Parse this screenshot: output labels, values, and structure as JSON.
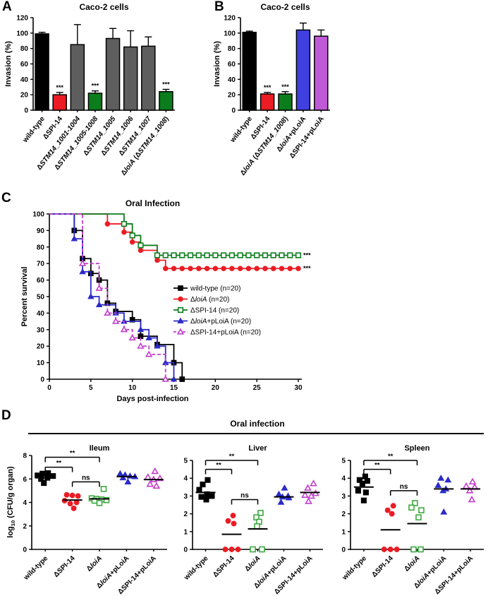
{
  "palette": {
    "black": "#000000",
    "red": "#EB1C24",
    "green": "#0B7D1C",
    "green_open": "#3BA93F",
    "blue": "#4040E0",
    "blue_deep": "#2B2BC8",
    "purple": "#BE5AD6",
    "magenta": "#C13FC9",
    "gray": "#5E5E5E"
  },
  "panel_labels": {
    "a": "A",
    "b": "B",
    "c": "C",
    "d": "D"
  },
  "chart_data": [
    {
      "panel": "A",
      "type": "bar",
      "title": "Caco-2 cells",
      "ylabel": "Invasion (%)",
      "ylim": [
        0,
        120
      ],
      "ystep": 20,
      "categories": [
        [
          [
            "wild-type",
            ""
          ]
        ],
        [
          [
            "ΔSPI-14",
            ""
          ]
        ],
        [
          [
            "Δ",
            ""
          ],
          [
            "STM14_1001-1004",
            "i"
          ]
        ],
        [
          [
            "Δ",
            ""
          ],
          [
            "STM14_1005-1008",
            "i"
          ]
        ],
        [
          [
            "Δ",
            ""
          ],
          [
            "STM14_1005",
            "i"
          ]
        ],
        [
          [
            "Δ",
            ""
          ],
          [
            "STM14_1006",
            "i"
          ]
        ],
        [
          [
            "Δ",
            ""
          ],
          [
            "STM14_1007",
            "i"
          ]
        ],
        [
          [
            "Δ",
            ""
          ],
          [
            "loiA",
            "i"
          ],
          [
            " (Δ",
            ""
          ],
          [
            "STM14_1008",
            "i"
          ],
          [
            ")",
            ""
          ]
        ]
      ],
      "values": [
        99,
        20,
        85,
        22,
        93,
        82,
        83,
        24
      ],
      "errors": [
        2,
        3,
        26,
        3,
        13,
        21,
        12,
        3
      ],
      "colors": [
        "black",
        "red",
        "gray",
        "green",
        "gray",
        "gray",
        "gray",
        "green"
      ],
      "sig": [
        "",
        "***",
        "",
        "***",
        "",
        "",
        "",
        "***"
      ]
    },
    {
      "panel": "B",
      "type": "bar",
      "title": "Caco-2 cells",
      "ylabel": "Invasion (%)",
      "ylim": [
        0,
        120
      ],
      "ystep": 20,
      "categories": [
        [
          [
            "wild-type",
            ""
          ]
        ],
        [
          [
            "ΔSPI-14",
            ""
          ]
        ],
        [
          [
            "Δ",
            ""
          ],
          [
            "loiA",
            "i"
          ],
          [
            " (Δ",
            ""
          ],
          [
            "STM14_1008",
            "i"
          ],
          [
            ")",
            ""
          ]
        ],
        [
          [
            "Δ",
            ""
          ],
          [
            "loiA",
            "i"
          ],
          [
            "+pLoiA",
            ""
          ]
        ],
        [
          [
            "ΔSPI-14+pLoiA",
            ""
          ]
        ]
      ],
      "values": [
        101,
        21,
        21,
        104,
        96
      ],
      "errors": [
        1.5,
        2,
        3,
        9,
        8
      ],
      "colors": [
        "black",
        "red",
        "green",
        "blue",
        "purple"
      ],
      "sig": [
        "",
        "***",
        "***",
        "",
        ""
      ]
    },
    {
      "panel": "C",
      "type": "line",
      "title": "Oral Infection",
      "xlabel": "Days post-infection",
      "ylabel": "Percent survival",
      "xlim": [
        0,
        30
      ],
      "xstep": 5,
      "ylim": [
        0,
        100
      ],
      "ystep": 10,
      "legend_position": "inside-right",
      "series": [
        {
          "name_parts": [
            [
              "wild-type (n=20)",
              ""
            ]
          ],
          "color": "black",
          "marker": "square",
          "open": false,
          "dashed": false,
          "sig": "",
          "points": [
            [
              0,
              100
            ],
            [
              3,
              90
            ],
            [
              4,
              73
            ],
            [
              5,
              64
            ],
            [
              6,
              60
            ],
            [
              7,
              46
            ],
            [
              8,
              41
            ],
            [
              10,
              36
            ],
            [
              11,
              26
            ],
            [
              13,
              21
            ],
            [
              15,
              10
            ],
            [
              16,
              0
            ]
          ]
        },
        {
          "name_parts": [
            [
              "Δ",
              ""
            ],
            [
              "loiA",
              "i"
            ],
            [
              " (n=20)",
              ""
            ]
          ],
          "color": "red",
          "marker": "circle",
          "open": false,
          "dashed": false,
          "sig": "***",
          "points": [
            [
              0,
              100
            ],
            [
              7,
              94
            ],
            [
              9,
              89
            ],
            [
              10,
              83
            ],
            [
              11,
              78
            ],
            [
              13,
              72
            ],
            [
              14,
              67
            ],
            [
              15,
              67
            ],
            [
              16,
              67
            ],
            [
              17,
              67
            ],
            [
              18,
              67
            ],
            [
              19,
              67
            ],
            [
              20,
              67
            ],
            [
              21,
              67
            ],
            [
              22,
              67
            ],
            [
              23,
              67
            ],
            [
              24,
              67
            ],
            [
              25,
              67
            ],
            [
              26,
              67
            ],
            [
              27,
              67
            ],
            [
              28,
              67
            ],
            [
              29,
              67
            ],
            [
              30,
              67
            ]
          ]
        },
        {
          "name_parts": [
            [
              "ΔSPI-14 (n=20)",
              ""
            ]
          ],
          "color": "green",
          "marker": "square",
          "open": true,
          "dashed": false,
          "sig": "***",
          "points": [
            [
              0,
              100
            ],
            [
              9,
              94
            ],
            [
              10,
              87
            ],
            [
              11,
              81
            ],
            [
              13,
              75
            ],
            [
              14,
              75
            ],
            [
              15,
              75
            ],
            [
              16,
              75
            ],
            [
              17,
              75
            ],
            [
              18,
              75
            ],
            [
              19,
              75
            ],
            [
              20,
              75
            ],
            [
              21,
              75
            ],
            [
              22,
              75
            ],
            [
              23,
              75
            ],
            [
              24,
              75
            ],
            [
              25,
              75
            ],
            [
              26,
              75
            ],
            [
              27,
              75
            ],
            [
              28,
              75
            ],
            [
              29,
              75
            ],
            [
              30,
              75
            ]
          ]
        },
        {
          "name_parts": [
            [
              "Δ",
              ""
            ],
            [
              "loiA",
              "i"
            ],
            [
              "+pLoiA (n=20)",
              ""
            ]
          ],
          "color": "blue_deep",
          "marker": "triangle",
          "open": false,
          "dashed": false,
          "sig": "",
          "points": [
            [
              0,
              100
            ],
            [
              3,
              85
            ],
            [
              4,
              65
            ],
            [
              5,
              50
            ],
            [
              6,
              45
            ],
            [
              8,
              40
            ],
            [
              9,
              35
            ],
            [
              11,
              30
            ],
            [
              12,
              25
            ],
            [
              13,
              20
            ],
            [
              14,
              10
            ],
            [
              15,
              0
            ]
          ]
        },
        {
          "name_parts": [
            [
              "ΔSPI-14+pLoiA (n=20)",
              ""
            ]
          ],
          "color": "magenta",
          "marker": "triangle",
          "open": true,
          "dashed": true,
          "sig": "",
          "points": [
            [
              0,
              100
            ],
            [
              4,
              70
            ],
            [
              6,
              55
            ],
            [
              7,
              40
            ],
            [
              8,
              35
            ],
            [
              9,
              30
            ],
            [
              10,
              25
            ],
            [
              11,
              20
            ],
            [
              12,
              15
            ],
            [
              14,
              0
            ]
          ]
        }
      ]
    },
    {
      "panel": "D",
      "type": "scatter",
      "title": "Oral infection",
      "ylabel_parts": [
        [
          "log",
          ""
        ],
        [
          "10",
          "s"
        ],
        [
          " (CFU/g organ)",
          ""
        ]
      ],
      "group_labels": [
        [
          [
            "wild-type",
            ""
          ]
        ],
        [
          [
            "ΔSPI-14",
            ""
          ]
        ],
        [
          [
            "Δ",
            ""
          ],
          [
            "loiA",
            "i"
          ]
        ],
        [
          [
            "Δ",
            ""
          ],
          [
            "loiA",
            "i"
          ],
          [
            "+pLoiA",
            ""
          ]
        ],
        [
          [
            "ΔSPI-14+pLoiA",
            ""
          ]
        ]
      ],
      "group_styles": [
        {
          "color": "black",
          "marker": "square",
          "open": false
        },
        {
          "color": "red",
          "marker": "circle",
          "open": false
        },
        {
          "color": "green_open",
          "marker": "square",
          "open": true
        },
        {
          "color": "blue_deep",
          "marker": "triangle",
          "open": false
        },
        {
          "color": "magenta",
          "marker": "triangle",
          "open": true
        }
      ],
      "subplots": [
        {
          "title": "Ileum",
          "ylim": [
            0,
            8
          ],
          "ystep": 2,
          "groups": [
            {
              "values": [
                6.5,
                6.45,
                6.3,
                6.25,
                6.1,
                6.0,
                5.65
              ],
              "jitter": [
                4,
                -4,
                -11,
                11,
                3,
                -6,
                -2
              ],
              "mean": 6.1
            },
            {
              "values": [
                4.65,
                4.6,
                4.55,
                4.15,
                4.0,
                3.9,
                3.5
              ],
              "jitter": [
                -8,
                0,
                8,
                -11,
                6,
                -3,
                2
              ],
              "mean": 4.2
            },
            {
              "values": [
                5.15,
                4.35,
                4.3,
                4.25,
                4.2,
                4.15,
                3.95
              ],
              "jitter": [
                6,
                -11,
                -4,
                3,
                10,
                -7,
                0
              ],
              "mean": 4.3
            },
            {
              "values": [
                6.45,
                6.35,
                6.25,
                6.2,
                6.1,
                5.75
              ],
              "jitter": [
                -9,
                -2,
                5,
                12,
                -5,
                2
              ],
              "mean": 6.2
            },
            {
              "values": [
                6.65,
                6.15,
                6.05,
                5.95,
                5.55,
                5.4
              ],
              "jitter": [
                2,
                -8,
                9,
                0,
                -5,
                4
              ],
              "mean": 5.95
            }
          ],
          "brackets": [
            {
              "a": 0,
              "b": 2,
              "y": 7.85,
              "label": "**"
            },
            {
              "a": 0,
              "b": 1,
              "y": 7.0,
              "label": "**"
            },
            {
              "a": 1,
              "b": 2,
              "y": 5.75,
              "label": "ns"
            }
          ]
        },
        {
          "title": "Liver",
          "ylim": [
            0,
            5
          ],
          "ystep": 1,
          "groups": [
            {
              "values": [
                3.9,
                3.65,
                3.35,
                3.1,
                3.0,
                2.95,
                2.8
              ],
              "jitter": [
                3,
                -4,
                -9,
                2,
                9,
                -6,
                1
              ],
              "mean": 3.2
            },
            {
              "values": [
                1.9,
                1.6,
                1.45,
                0,
                0,
                0
              ],
              "jitter": [
                2,
                -5,
                3,
                -9,
                0,
                9
              ],
              "mean": 0.85
            },
            {
              "values": [
                2.05,
                1.8,
                1.55,
                1.3,
                0,
                0
              ],
              "jitter": [
                4,
                -2,
                2,
                -1,
                -7,
                6
              ],
              "mean": 1.15
            },
            {
              "values": [
                3.45,
                3.1,
                3.0,
                2.95,
                2.9,
                2.65
              ],
              "jitter": [
                1,
                -7,
                6,
                -2,
                7,
                -4
              ],
              "mean": 2.95
            },
            {
              "values": [
                3.7,
                3.45,
                3.15,
                3.05,
                3.0,
                2.7
              ],
              "jitter": [
                5,
                -3,
                8,
                -7,
                2,
                -2
              ],
              "mean": 3.2
            }
          ],
          "brackets": [
            {
              "a": 0,
              "b": 2,
              "y": 5.0,
              "label": "**"
            },
            {
              "a": 0,
              "b": 1,
              "y": 4.5,
              "label": "**"
            },
            {
              "a": 1,
              "b": 2,
              "y": 2.8,
              "label": "ns"
            }
          ]
        },
        {
          "title": "Spleen",
          "ylim": [
            0,
            5
          ],
          "ystep": 1,
          "groups": [
            {
              "values": [
                4.1,
                3.9,
                3.85,
                3.7,
                3.3,
                3.2,
                2.75
              ],
              "jitter": [
                2,
                -6,
                5,
                -2,
                -8,
                3,
                0
              ],
              "mean": 3.5
            },
            {
              "values": [
                2.45,
                2.2,
                2.0,
                0,
                0,
                0
              ],
              "jitter": [
                4,
                -4,
                2,
                -9,
                0,
                9
              ],
              "mean": 1.1
            },
            {
              "values": [
                2.6,
                2.35,
                2.2,
                1.8,
                0,
                0
              ],
              "jitter": [
                -3,
                -8,
                6,
                2,
                -5,
                5
              ],
              "mean": 1.45
            },
            {
              "values": [
                4.0,
                3.9,
                3.6,
                3.4,
                3.3,
                2.1
              ],
              "jitter": [
                -4,
                6,
                -8,
                3,
                -1,
                0
              ],
              "mean": 3.4
            },
            {
              "values": [
                3.8,
                3.55,
                3.5,
                3.3,
                2.8
              ],
              "jitter": [
                3,
                -6,
                6,
                -1,
                2
              ],
              "mean": 3.4
            }
          ],
          "brackets": [
            {
              "a": 0,
              "b": 2,
              "y": 5.0,
              "label": "**"
            },
            {
              "a": 0,
              "b": 1,
              "y": 4.5,
              "label": "**"
            },
            {
              "a": 1,
              "b": 2,
              "y": 3.3,
              "label": "ns"
            }
          ]
        }
      ]
    }
  ]
}
